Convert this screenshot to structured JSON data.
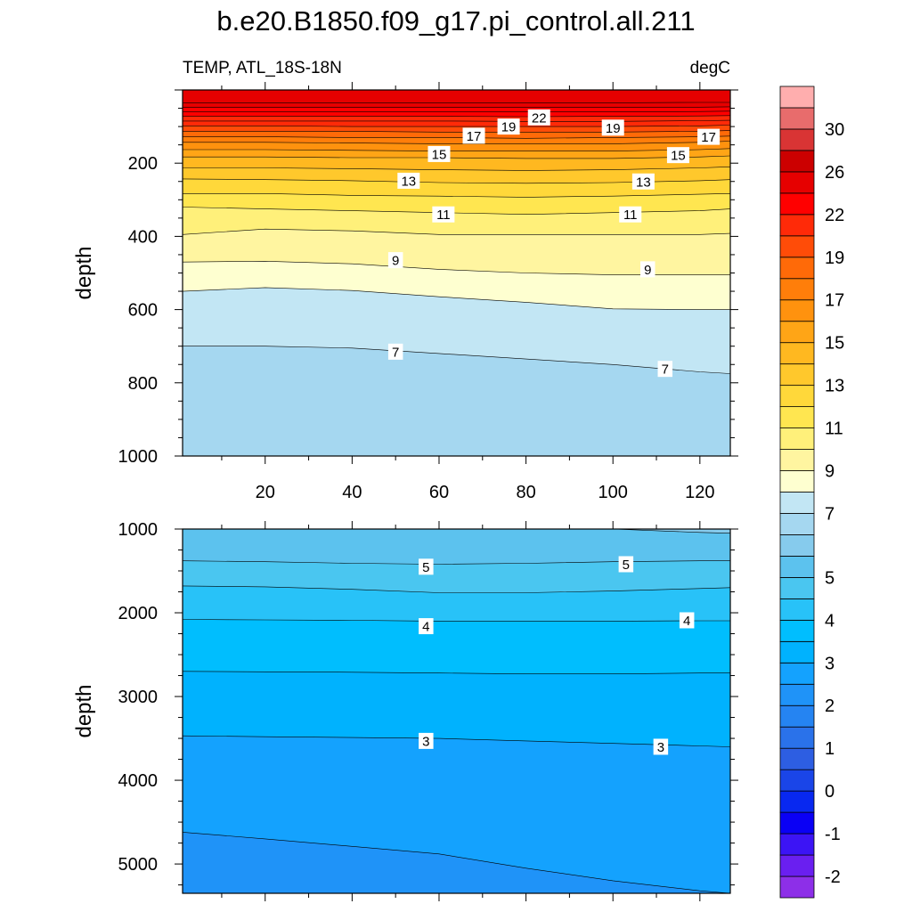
{
  "figure": {
    "title": "b.e20.B1850.f09_g17.pi_control.all.211",
    "variable_label": "TEMP, ATL_18S-18N",
    "units_label": "degC"
  },
  "chart_data": [
    {
      "type": "heatmap",
      "panel": "upper",
      "ylabel": "depth",
      "xlabel": "",
      "xlim": [
        1,
        127
      ],
      "ylim": [
        1000,
        0
      ],
      "y_inverted": true,
      "x_ticks": [
        20,
        40,
        60,
        80,
        100,
        120
      ],
      "y_ticks": [
        200,
        400,
        600,
        800,
        1000
      ],
      "grid": false,
      "x": [
        2,
        20,
        40,
        60,
        80,
        100,
        120,
        126
      ],
      "contour_depths": [
        {
          "level": 7,
          "depths": [
            700,
            700,
            705,
            720,
            735,
            750,
            770,
            775
          ]
        },
        {
          "level": 8,
          "depths": [
            550,
            540,
            548,
            565,
            580,
            598,
            600,
            600
          ]
        },
        {
          "level": 9,
          "depths": [
            470,
            468,
            475,
            490,
            500,
            505,
            505,
            505
          ]
        },
        {
          "level": 10,
          "depths": [
            395,
            380,
            385,
            395,
            395,
            395,
            395,
            392
          ]
        },
        {
          "level": 11,
          "depths": [
            320,
            325,
            330,
            335,
            340,
            335,
            330,
            325
          ]
        },
        {
          "level": 12,
          "depths": [
            283,
            283,
            288,
            290,
            293,
            290,
            285,
            283
          ]
        },
        {
          "level": 13,
          "depths": [
            243,
            245,
            248,
            253,
            255,
            253,
            248,
            245
          ]
        },
        {
          "level": 14,
          "depths": [
            213,
            213,
            215,
            218,
            220,
            218,
            213,
            210
          ]
        },
        {
          "level": 15,
          "depths": [
            183,
            183,
            185,
            185,
            187,
            187,
            183,
            180
          ]
        },
        {
          "level": 16,
          "depths": [
            163,
            163,
            165,
            167,
            167,
            167,
            163,
            160
          ]
        },
        {
          "level": 17,
          "depths": [
            143,
            143,
            145,
            147,
            147,
            147,
            143,
            140
          ]
        },
        {
          "level": 18,
          "depths": [
            128,
            128,
            130,
            130,
            132,
            130,
            128,
            126
          ]
        },
        {
          "level": 19,
          "depths": [
            113,
            113,
            113,
            115,
            115,
            115,
            113,
            111
          ]
        },
        {
          "level": 20,
          "depths": [
            98,
            98,
            100,
            100,
            100,
            100,
            98,
            96
          ]
        },
        {
          "level": 21,
          "depths": [
            85,
            85,
            85,
            85,
            86,
            86,
            84,
            83
          ]
        },
        {
          "level": 22,
          "depths": [
            72,
            72,
            72,
            72,
            73,
            72,
            71,
            70
          ]
        },
        {
          "level": 23,
          "depths": [
            60,
            60,
            60,
            60,
            60,
            60,
            59,
            58
          ]
        },
        {
          "level": 24,
          "depths": [
            48,
            48,
            48,
            48,
            48,
            48,
            47,
            46
          ]
        },
        {
          "level": 25,
          "depths": [
            35,
            35,
            35,
            35,
            35,
            35,
            34,
            34
          ]
        }
      ],
      "surface_value": 26,
      "bottom_value": 6.5,
      "contour_labels": [
        {
          "text": "22",
          "x": 83,
          "depth": 75
        },
        {
          "text": "19",
          "x": 76,
          "depth": 100
        },
        {
          "text": "19",
          "x": 100,
          "depth": 103
        },
        {
          "text": "17",
          "x": 68,
          "depth": 125
        },
        {
          "text": "17",
          "x": 122,
          "depth": 128
        },
        {
          "text": "15",
          "x": 60,
          "depth": 175
        },
        {
          "text": "15",
          "x": 115,
          "depth": 178
        },
        {
          "text": "13",
          "x": 53,
          "depth": 248
        },
        {
          "text": "13",
          "x": 107,
          "depth": 250
        },
        {
          "text": "11",
          "x": 61,
          "depth": 340
        },
        {
          "text": "11",
          "x": 104,
          "depth": 340
        },
        {
          "text": "9",
          "x": 50,
          "depth": 465
        },
        {
          "text": "9",
          "x": 108,
          "depth": 490
        },
        {
          "text": "7",
          "x": 50,
          "depth": 715
        },
        {
          "text": "7",
          "x": 112,
          "depth": 762
        }
      ]
    },
    {
      "type": "heatmap",
      "panel": "lower",
      "ylabel": "depth",
      "xlabel": "",
      "xlim": [
        1,
        127
      ],
      "ylim": [
        5350,
        1000
      ],
      "y_inverted": true,
      "x_ticks": [
        20,
        40,
        60,
        80,
        100,
        120
      ],
      "y_ticks": [
        1000,
        2000,
        3000,
        4000,
        5000
      ],
      "grid": false,
      "x": [
        2,
        20,
        40,
        60,
        80,
        100,
        120,
        126
      ],
      "contour_depths": [
        {
          "level": 2.5,
          "depths": [
            4620,
            4700,
            4790,
            4880,
            5050,
            5200,
            5320,
            5350
          ]
        },
        {
          "level": 3,
          "depths": [
            3470,
            3480,
            3490,
            3500,
            3530,
            3560,
            3590,
            3600
          ]
        },
        {
          "level": 3.5,
          "depths": [
            2700,
            2705,
            2710,
            2720,
            2730,
            2730,
            2720,
            2720
          ]
        },
        {
          "level": 4,
          "depths": [
            2080,
            2085,
            2090,
            2100,
            2100,
            2100,
            2095,
            2095
          ]
        },
        {
          "level": 4.5,
          "depths": [
            1680,
            1690,
            1720,
            1760,
            1760,
            1740,
            1710,
            1700
          ]
        },
        {
          "level": 5,
          "depths": [
            1380,
            1390,
            1410,
            1420,
            1410,
            1390,
            1380,
            1380
          ]
        },
        {
          "level": 5.5,
          "depths": [
            1000,
            1000,
            1000,
            1000,
            1000,
            1000,
            1040,
            1050
          ]
        }
      ],
      "top_value": 5.6,
      "bottom_value": 2.3,
      "contour_labels": [
        {
          "text": "5",
          "x": 57,
          "depth": 1450
        },
        {
          "text": "5",
          "x": 103,
          "depth": 1420
        },
        {
          "text": "4",
          "x": 57,
          "depth": 2160
        },
        {
          "text": "4",
          "x": 117,
          "depth": 2090
        },
        {
          "text": "3",
          "x": 57,
          "depth": 3530
        },
        {
          "text": "3",
          "x": 111,
          "depth": 3600
        }
      ]
    }
  ],
  "colorbar": {
    "levels": [
      -2.5,
      -2,
      -1.5,
      -1,
      -0.5,
      0,
      0.5,
      1,
      1.5,
      2,
      2.5,
      3,
      3.5,
      4,
      4.5,
      5,
      5.5,
      6,
      7,
      8,
      9,
      10,
      11,
      12,
      13,
      14,
      15,
      16,
      17,
      18,
      19,
      20,
      22,
      24,
      26,
      28,
      30,
      32,
      34
    ],
    "colors": [
      "#8d2fe8",
      "#6a1ff0",
      "#3c14f5",
      "#0a00f5",
      "#0828f0",
      "#1a45e8",
      "#2d5ee2",
      "#2a72ea",
      "#2584f2",
      "#1f93f8",
      "#14a2fe",
      "#00b2fe",
      "#00befe",
      "#28c2f8",
      "#4ac6f0",
      "#5cc2ee",
      "#86cbed",
      "#a5d7f0",
      "#c2e6f4",
      "#feffd0",
      "#fff5a0",
      "#fff07a",
      "#ffe650",
      "#ffd83a",
      "#ffc82c",
      "#ffb820",
      "#ffa516",
      "#ff920e",
      "#ff7e0a",
      "#ff6a08",
      "#ff4c08",
      "#ff2a08",
      "#ff0000",
      "#e60000",
      "#cc0000",
      "#d93434",
      "#e86c6c",
      "#ffaeae"
    ],
    "labels": [
      {
        "text": "-2",
        "level": -2
      },
      {
        "text": "-1",
        "level": -1
      },
      {
        "text": "0",
        "level": 0
      },
      {
        "text": "1",
        "level": 1
      },
      {
        "text": "2",
        "level": 2
      },
      {
        "text": "3",
        "level": 3
      },
      {
        "text": "4",
        "level": 4
      },
      {
        "text": "5",
        "level": 5
      },
      {
        "text": "7",
        "level": 7
      },
      {
        "text": "9",
        "level": 9
      },
      {
        "text": "11",
        "level": 11
      },
      {
        "text": "13",
        "level": 13
      },
      {
        "text": "15",
        "level": 15
      },
      {
        "text": "17",
        "level": 17
      },
      {
        "text": "19",
        "level": 19
      },
      {
        "text": "22",
        "level": 22
      },
      {
        "text": "26",
        "level": 26
      },
      {
        "text": "30",
        "level": 30
      }
    ]
  }
}
